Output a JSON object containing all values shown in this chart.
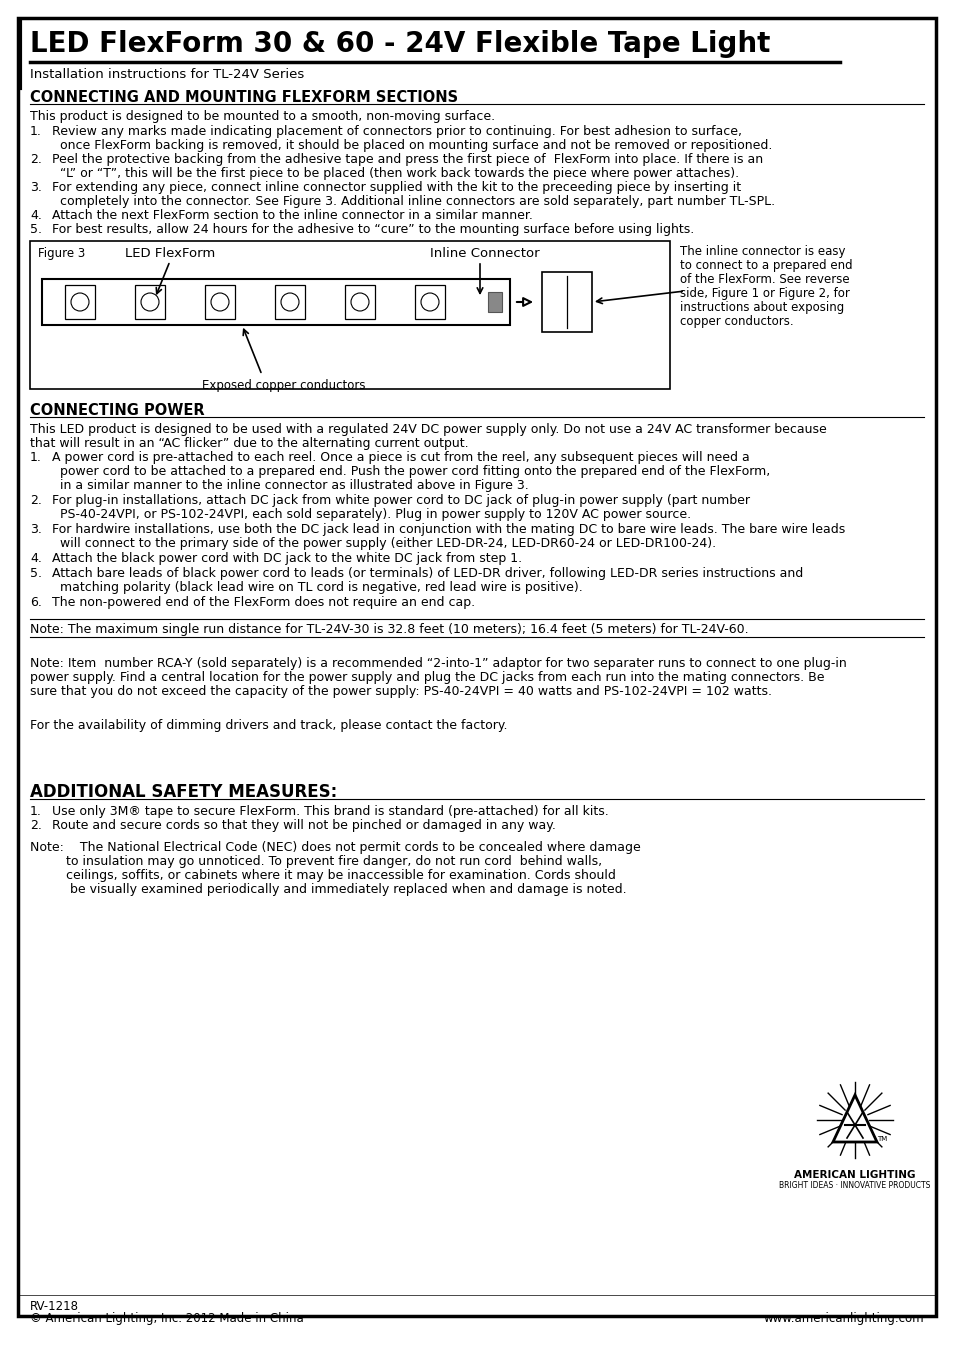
{
  "title": "LED FlexForm 30 & 60 - 24V Flexible Tape Light",
  "subtitle": "Installation instructions for TL-24V Series",
  "bg_color": "#ffffff",
  "border_color": "#000000",
  "section1_heading": "CONNECTING AND MOUNTING FLEXFORM SECTIONS",
  "section1_intro": "This product is designed to be mounted to a smooth, non-moving surface.",
  "section1_items": [
    [
      "Review any marks made indicating placement of connectors prior to continuing. For best adhesion to surface,",
      "once FlexForm backing is removed, it should be placed on mounting surface and not be removed or repositioned."
    ],
    [
      "Peel the protective backing from the adhesive tape and press the first piece of  FlexForm into place. If there is an",
      "“L” or “T”, this will be the first piece to be placed (then work back towards the piece where power attaches)."
    ],
    [
      "For extending any piece, connect inline connector supplied with the kit to the preceeding piece by inserting it",
      "completely into the connector. See Figure 3. Additional inline connectors are sold separately, part number TL-SPL."
    ],
    [
      "Attach the next FlexForm section to the inline connector in a similar manner."
    ],
    [
      "For best results, allow 24 hours for the adhesive to “cure” to the mounting surface before using lights."
    ]
  ],
  "section2_heading": "CONNECTING POWER",
  "section2_intro": [
    "This LED product is designed to be used with a regulated 24V DC power supply only. Do not use a 24V AC transformer because",
    "that will result in an “AC flicker” due to the alternating current output."
  ],
  "section2_items": [
    [
      "A power cord is pre-attached to each reel. Once a piece is cut from the reel, any subsequent pieces will need a",
      "power cord to be attached to a prepared end. Push the power cord fitting onto the prepared end of the FlexForm,",
      "in a similar manner to the inline connector as illustrated above in Figure 3."
    ],
    [
      "For plug-in installations, attach DC jack from white power cord to DC jack of plug-in power supply (part number",
      "PS-40-24VPI, or PS-102-24VPI, each sold separately). Plug in power supply to 120V AC power source."
    ],
    [
      "For hardwire installations, use both the DC jack lead in conjunction with the mating DC to bare wire leads. The bare wire leads",
      "will connect to the primary side of the power supply (either LED-DR-24, LED-DR60-24 or LED-DR100-24)."
    ],
    [
      "Attach the black power cord with DC jack to the white DC jack from step 1."
    ],
    [
      "Attach bare leads of black power cord to leads (or terminals) of LED-DR driver, following LED-DR series instructions and",
      "matching polarity (black lead wire on TL cord is negative, red lead wire is positive)."
    ],
    [
      "The non-powered end of the FlexForm does not require an end cap."
    ]
  ],
  "note1": "Note: The maximum single run distance for TL-24V-30 is 32.8 feet (10 meters); 16.4 feet (5 meters) for TL-24V-60.",
  "note2": [
    "Note: Item  number RCA-Y (sold separately) is a recommended “2-into-1” adaptor for two separater runs to connect to one plug-in",
    "power supply. Find a central location for the power supply and plug the DC jacks from each run into the mating connectors. Be",
    "sure that you do not exceed the capacity of the power supply: PS-40-24VPI = 40 watts and PS-102-24VPI = 102 watts."
  ],
  "note3": "For the availability of dimming drivers and track, please contact the factory.",
  "section3_heading": "ADDITIONAL SAFETY MEASURES:",
  "section3_items": [
    "Use only 3M® tape to secure FlexForm. This brand is standard (pre-attached) for all kits.",
    "Route and secure cords so that they will not be pinched or damaged in any way."
  ],
  "note4": [
    "Note:    The National Electrical Code (NEC) does not permit cords to be concealed where damage",
    "         to insulation may go unnoticed. To prevent fire danger, do not run cord  behind walls,",
    "         ceilings, soffits, or cabinets where it may be inaccessible for examination. Cords should",
    "          be visually examined periodically and immediately replaced when and damage is noted."
  ],
  "footer_left1": "RV-1218",
  "footer_left2": "© American Lighting, Inc. 2012 Made in China",
  "footer_right": "www.americanlighting.com",
  "fig3_right_text": [
    "The inline connector is easy",
    "to connect to a prepared end",
    "of the FlexForm. See reverse",
    "side, Figure 1 or Figure 2, for",
    "instructions about exposing",
    "copper conductors."
  ]
}
